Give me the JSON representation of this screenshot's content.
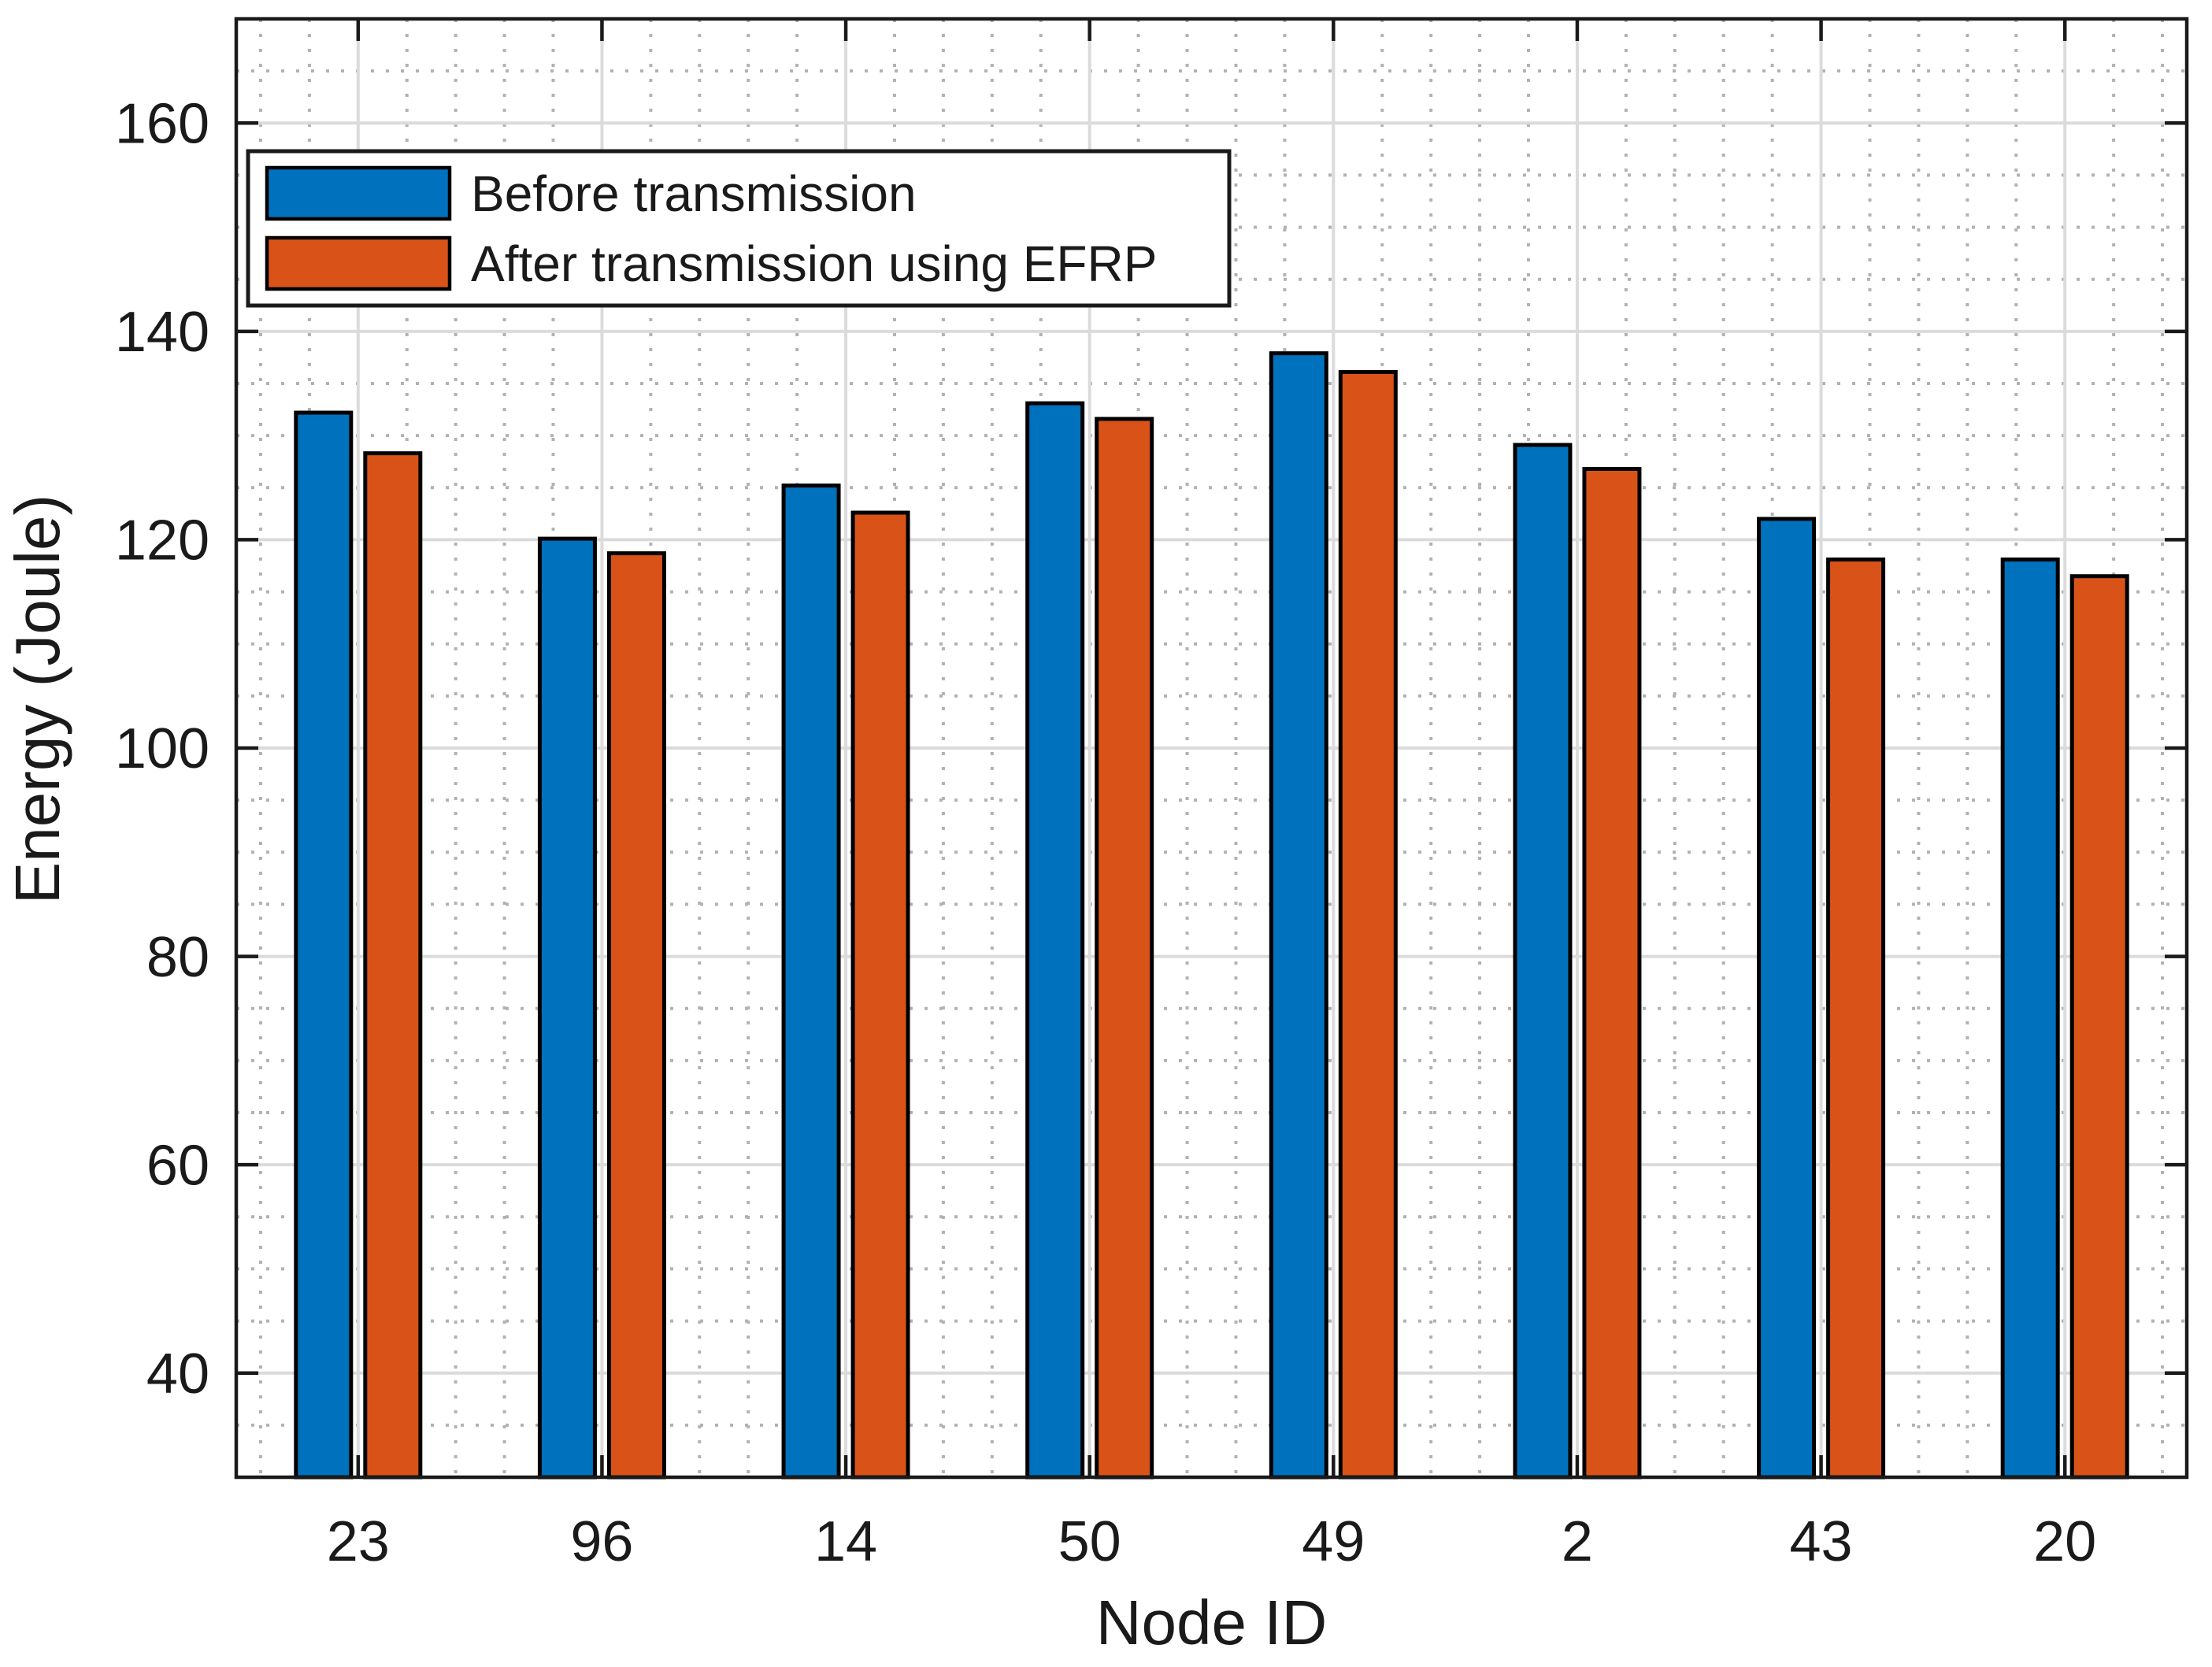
{
  "figure": {
    "background": "#ffffff",
    "axis_color": "#1a1a1a",
    "bar_edge_color": "#000000",
    "grid_major_color": "#dbdbdb",
    "grid_minor_color": "#b2b2b2"
  },
  "chart_data": {
    "type": "bar",
    "title": "",
    "xlabel": "Node ID",
    "ylabel": "Energy (Joule)",
    "categories": [
      "23",
      "96",
      "14",
      "50",
      "49",
      "2",
      "43",
      "20"
    ],
    "series": [
      {
        "name": "Before transmission",
        "color": "#0072BD",
        "values": [
          132.2,
          120.1,
          125.2,
          133.1,
          137.9,
          129.1,
          122.0,
          118.1
        ]
      },
      {
        "name": "After transmission using EFRP",
        "color": "#D95319",
        "values": [
          128.3,
          118.7,
          122.6,
          131.6,
          136.1,
          126.8,
          118.1,
          116.5
        ]
      }
    ],
    "ylim": [
      30,
      170
    ],
    "yticks": [
      40,
      60,
      80,
      100,
      120,
      140,
      160
    ],
    "grid": {
      "major": true,
      "minor": true,
      "y_minor_step": 5,
      "x_minor_divisions": 5
    },
    "legend": {
      "position": "top-left"
    }
  }
}
